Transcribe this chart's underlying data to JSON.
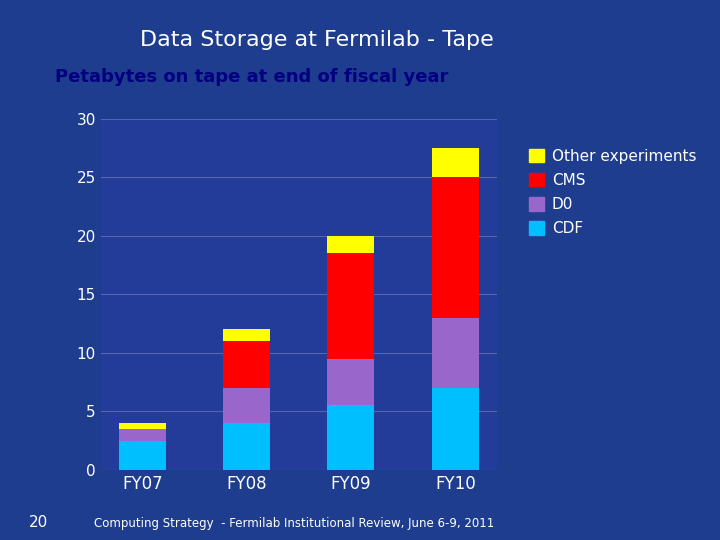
{
  "title_main": "Data Storage at Fermilab - Tape",
  "subtitle": "Petabytes on tape at end of fiscal year",
  "categories": [
    "FY07",
    "FY08",
    "FY09",
    "FY10"
  ],
  "series": {
    "CDF": [
      2.5,
      4.0,
      5.5,
      7.0
    ],
    "D0": [
      1.0,
      3.0,
      4.0,
      6.0
    ],
    "CMS": [
      0.0,
      4.0,
      9.0,
      12.0
    ],
    "Other experiments": [
      0.5,
      1.0,
      1.5,
      2.5
    ]
  },
  "colors": {
    "CDF": "#00BFFF",
    "D0": "#9966CC",
    "CMS": "#FF0000",
    "Other experiments": "#FFFF00"
  },
  "ylim": [
    0,
    30
  ],
  "yticks": [
    0,
    5,
    10,
    15,
    20,
    25,
    30
  ],
  "background_color": "#1E3D8F",
  "plot_background_color": "#233C99",
  "title_color": "#FFFFFF",
  "subtitle_color": "#000080",
  "tick_color": "#FFFFFF",
  "grid_color": "#5566AA",
  "legend_text_color": "#FFFFFF",
  "footer_text": "Computing Strategy  - Fermilab Institutional Review, June 6-9, 2011",
  "footer_number": "20",
  "bar_width": 0.45
}
